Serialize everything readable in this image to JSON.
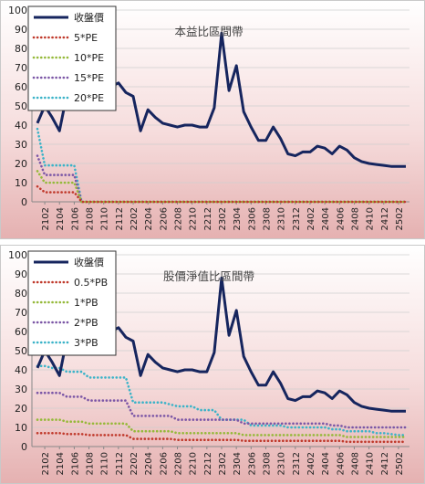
{
  "colors": {
    "price": "#16255e",
    "s1": "#c0392b",
    "s2": "#95b93a",
    "s3": "#7b56a6",
    "s4": "#3bb3c8"
  },
  "chart_data": [
    {
      "type": "line",
      "title": "本益比區間帶",
      "ylim": [
        0,
        100
      ],
      "yticks": [
        0,
        10,
        20,
        30,
        40,
        50,
        60,
        70,
        80,
        90,
        100
      ],
      "tick_labels": [
        "2102",
        "2104",
        "2106",
        "2108",
        "2110",
        "2112",
        "2202",
        "2204",
        "2206",
        "2208",
        "2210",
        "2212",
        "2302",
        "2304",
        "2306",
        "2308",
        "2310",
        "2312",
        "2402",
        "2404",
        "2406",
        "2408",
        "2410",
        "2412",
        "2502"
      ],
      "x": [
        "2101",
        "2102",
        "2103",
        "2104",
        "2105",
        "2106",
        "2107",
        "2108",
        "2109",
        "2110",
        "2111",
        "2112",
        "2201",
        "2202",
        "2203",
        "2204",
        "2205",
        "2206",
        "2207",
        "2208",
        "2209",
        "2210",
        "2211",
        "2212",
        "2301",
        "2302",
        "2303",
        "2304",
        "2305",
        "2306",
        "2307",
        "2308",
        "2309",
        "2310",
        "2311",
        "2312",
        "2401",
        "2402",
        "2403",
        "2404",
        "2405",
        "2406",
        "2407",
        "2408",
        "2409",
        "2410",
        "2411",
        "2412",
        "2501",
        "2502",
        "2503"
      ],
      "legend_position": "top-left",
      "grid": true,
      "series": [
        {
          "name": "收盤價",
          "style": "solid",
          "color_key": "price",
          "values": [
            41,
            50,
            44,
            37,
            56,
            58,
            57,
            55,
            60,
            55,
            60,
            62,
            57,
            55,
            37,
            48,
            44,
            41,
            40,
            39,
            40,
            40,
            39,
            39,
            49,
            88,
            58,
            71,
            47,
            39,
            32,
            32,
            39,
            33,
            25,
            24,
            26,
            26,
            29,
            28,
            25,
            29,
            27,
            23,
            21,
            20,
            19.5,
            19,
            18.5,
            18.5,
            18.5
          ]
        },
        {
          "name": "5*PE",
          "style": "dotted",
          "color_key": "s1",
          "values": [
            8,
            5,
            5,
            5,
            5,
            5,
            0,
            0,
            0,
            0,
            0,
            0,
            0,
            0,
            0,
            0,
            0,
            0,
            0,
            0,
            0,
            0,
            0,
            0,
            0,
            0,
            0,
            0,
            0,
            0,
            0,
            0,
            0,
            0,
            0,
            0,
            0,
            0,
            0,
            0,
            0,
            0,
            0,
            0,
            0,
            0,
            0,
            0,
            0,
            0,
            0
          ]
        },
        {
          "name": "10*PE",
          "style": "dotted",
          "color_key": "s2",
          "values": [
            16,
            10,
            10,
            10,
            10,
            10,
            0,
            0,
            0,
            0,
            0,
            0,
            0,
            0,
            0,
            0,
            0,
            0,
            0,
            0,
            0,
            0,
            0,
            0,
            0,
            0,
            0,
            0,
            0,
            0,
            0,
            0,
            0,
            0,
            0,
            0,
            0,
            0,
            0,
            0,
            0,
            0,
            0,
            0,
            0,
            0,
            0,
            0,
            0,
            0,
            0
          ]
        },
        {
          "name": "15*PE",
          "style": "dotted",
          "color_key": "s3",
          "values": [
            24,
            14,
            14,
            14,
            14,
            14,
            0,
            0,
            0,
            0,
            0,
            0,
            0,
            0,
            0,
            0,
            0,
            0,
            0,
            0,
            0,
            0,
            0,
            0,
            0,
            0,
            0,
            0,
            0,
            0,
            0,
            0,
            0,
            0,
            0,
            0,
            0,
            0,
            0,
            0,
            0,
            0,
            0,
            0,
            0,
            0,
            0,
            0,
            0,
            0,
            0
          ]
        },
        {
          "name": "20*PE",
          "style": "dotted",
          "color_key": "s4",
          "values": [
            38,
            19,
            19,
            19,
            19,
            19,
            0,
            0,
            0,
            0,
            0,
            0,
            0,
            0,
            0,
            0,
            0,
            0,
            0,
            0,
            0,
            0,
            0,
            0,
            0,
            0,
            0,
            0,
            0,
            0,
            0,
            0,
            0,
            0,
            0,
            0,
            0,
            0,
            0,
            0,
            0,
            0,
            0,
            0,
            0,
            0,
            0,
            0,
            0,
            0,
            0
          ]
        }
      ]
    },
    {
      "type": "line",
      "title": "股價淨值比區間帶",
      "ylim": [
        0,
        100
      ],
      "yticks": [
        0,
        10,
        20,
        30,
        40,
        50,
        60,
        70,
        80,
        90,
        100
      ],
      "tick_labels": [
        "2102",
        "2104",
        "2106",
        "2108",
        "2110",
        "2112",
        "2202",
        "2204",
        "2206",
        "2208",
        "2210",
        "2212",
        "2302",
        "2304",
        "2306",
        "2308",
        "2310",
        "2312",
        "2402",
        "2404",
        "2406",
        "2408",
        "2410",
        "2412",
        "2502"
      ],
      "x": [
        "2101",
        "2102",
        "2103",
        "2104",
        "2105",
        "2106",
        "2107",
        "2108",
        "2109",
        "2110",
        "2111",
        "2112",
        "2201",
        "2202",
        "2203",
        "2204",
        "2205",
        "2206",
        "2207",
        "2208",
        "2209",
        "2210",
        "2211",
        "2212",
        "2301",
        "2302",
        "2303",
        "2304",
        "2305",
        "2306",
        "2307",
        "2308",
        "2309",
        "2310",
        "2311",
        "2312",
        "2401",
        "2402",
        "2403",
        "2404",
        "2405",
        "2406",
        "2407",
        "2408",
        "2409",
        "2410",
        "2411",
        "2412",
        "2501",
        "2502",
        "2503"
      ],
      "legend_position": "top-left",
      "grid": true,
      "series": [
        {
          "name": "收盤價",
          "style": "solid",
          "color_key": "price",
          "values": [
            41,
            50,
            44,
            37,
            56,
            58,
            57,
            55,
            60,
            55,
            60,
            62,
            57,
            55,
            37,
            48,
            44,
            41,
            40,
            39,
            40,
            40,
            39,
            39,
            49,
            88,
            58,
            71,
            47,
            39,
            32,
            32,
            39,
            33,
            25,
            24,
            26,
            26,
            29,
            28,
            25,
            29,
            27,
            23,
            21,
            20,
            19.5,
            19,
            18.5,
            18.5,
            18.5
          ]
        },
        {
          "name": "0.5*PB",
          "style": "dotted",
          "color_key": "s1",
          "values": [
            7,
            7,
            7,
            7,
            6.5,
            6.5,
            6.5,
            6,
            6,
            6,
            6,
            6,
            6,
            4,
            4,
            4,
            4,
            4,
            4,
            3.5,
            3.5,
            3.5,
            3.5,
            3.5,
            3.5,
            3.5,
            3.5,
            3.5,
            3,
            3,
            3,
            3,
            3,
            3,
            3,
            3,
            3,
            3,
            3,
            3,
            3,
            3,
            2.5,
            2.5,
            2.5,
            2.5,
            2.5,
            2.5,
            2.5,
            2.5,
            2.5
          ]
        },
        {
          "name": "1*PB",
          "style": "dotted",
          "color_key": "s2",
          "values": [
            14,
            14,
            14,
            14,
            13,
            13,
            13,
            12,
            12,
            12,
            12,
            12,
            12,
            8,
            8,
            8,
            8,
            8,
            8,
            7,
            7,
            7,
            7,
            7,
            7,
            7,
            7,
            7,
            6,
            6,
            6,
            6,
            6,
            6,
            6,
            6,
            6,
            6,
            6,
            6,
            6,
            6,
            5,
            5,
            5,
            5,
            5,
            5,
            5,
            5,
            5
          ]
        },
        {
          "name": "2*PB",
          "style": "dotted",
          "color_key": "s3",
          "values": [
            28,
            28,
            28,
            28,
            26,
            26,
            26,
            24,
            24,
            24,
            24,
            24,
            24,
            16,
            16,
            16,
            16,
            16,
            16,
            14,
            14,
            14,
            14,
            14,
            14,
            14,
            14,
            14,
            12,
            12,
            12,
            12,
            12,
            12,
            12,
            12,
            12,
            12,
            12,
            12,
            11,
            11,
            10,
            10,
            10,
            10,
            10,
            10,
            10,
            10,
            10
          ]
        },
        {
          "name": "3*PB",
          "style": "dotted",
          "color_key": "s4",
          "values": [
            42,
            42,
            41,
            41,
            39,
            39,
            39,
            36,
            36,
            36,
            36,
            36,
            36,
            23,
            23,
            23,
            23,
            23,
            22,
            21,
            21,
            21,
            19,
            19,
            19,
            14,
            14,
            14,
            14,
            11,
            11,
            11,
            11,
            11,
            10,
            10,
            10,
            10,
            10,
            10,
            9,
            9,
            8,
            8,
            8,
            8,
            7,
            7,
            6.5,
            6,
            6
          ]
        }
      ]
    }
  ]
}
